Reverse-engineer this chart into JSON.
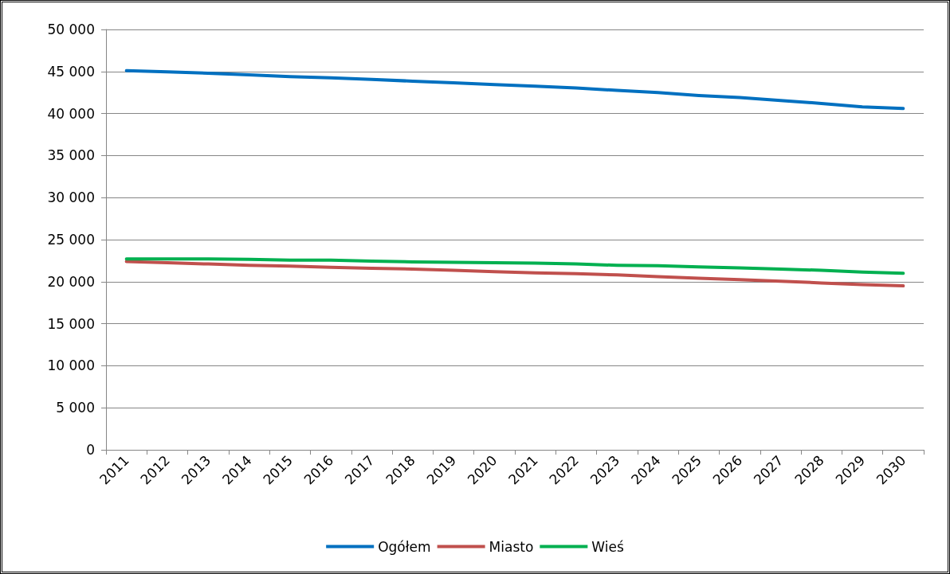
{
  "chart_data": {
    "type": "line",
    "categories": [
      "2011",
      "2012",
      "2013",
      "2014",
      "2015",
      "2016",
      "2017",
      "2018",
      "2019",
      "2020",
      "2021",
      "2022",
      "2023",
      "2024",
      "2025",
      "2026",
      "2027",
      "2028",
      "2029",
      "2030"
    ],
    "series": [
      {
        "name": "Ogółem",
        "color": "#0070c0",
        "values": [
          45100,
          44950,
          44800,
          44600,
          44400,
          44250,
          44050,
          43850,
          43650,
          43450,
          43250,
          43050,
          42750,
          42500,
          42150,
          41900,
          41550,
          41200,
          40800,
          40600
        ]
      },
      {
        "name": "Miasto",
        "color": "#c0504d",
        "values": [
          22400,
          22250,
          22100,
          21950,
          21850,
          21700,
          21600,
          21500,
          21350,
          21200,
          21050,
          20950,
          20800,
          20600,
          20400,
          20250,
          20050,
          19850,
          19650,
          19500
        ]
      },
      {
        "name": "Wieś",
        "color": "#00b050",
        "values": [
          22700,
          22700,
          22700,
          22650,
          22550,
          22550,
          22450,
          22350,
          22300,
          22250,
          22200,
          22100,
          21950,
          21900,
          21750,
          21650,
          21500,
          21350,
          21150,
          21000
        ]
      }
    ],
    "ylim": [
      0,
      50000
    ],
    "yticks": [
      0,
      {
        "value": 5000,
        "label": "5 000"
      },
      {
        "value": 10000,
        "label": "10 000"
      },
      {
        "value": 15000,
        "label": "15 000"
      },
      {
        "value": 20000,
        "label": "20 000"
      },
      {
        "value": 25000,
        "label": "25 000"
      },
      {
        "value": 30000,
        "label": "30 000"
      },
      {
        "value": 35000,
        "label": "35 000"
      },
      {
        "value": 40000,
        "label": "40 000"
      },
      {
        "value": 45000,
        "label": "45 000"
      },
      {
        "value": 50000,
        "label": "50 000"
      }
    ],
    "grid": "y",
    "legend": "bottom",
    "marker": "none",
    "line_style": "solid"
  }
}
